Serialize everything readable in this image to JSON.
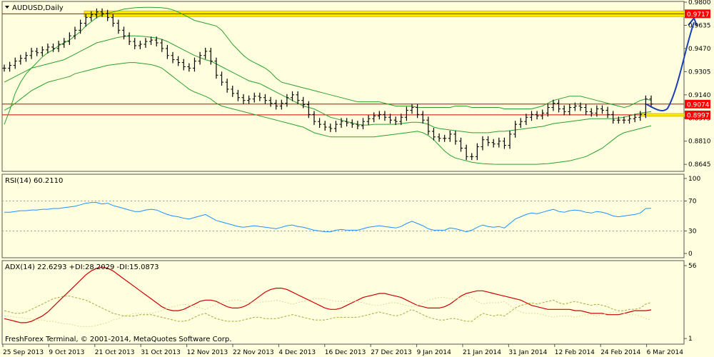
{
  "colors": {
    "background": "#ffffe0",
    "frame": "#555555",
    "candles": "#000000",
    "bollinger": "#2ca02c",
    "resistance": "#cc0000",
    "highlight_zone": "#ffee00",
    "highlight_edge": "#e0b400",
    "rsi_line": "#1e90ff",
    "adx_line": "#cc0000",
    "plus_di": "#a8a83a",
    "minus_di": "#d9d9a0",
    "arrow": "#1a3fb5",
    "label_bg": "#ff0000",
    "label_text": "#ffffff"
  },
  "chart_data": [
    {
      "type": "candlestick",
      "title": "AUDUSD,Daily",
      "ylim": [
        0.86,
        0.98
      ],
      "y_ticks": [
        "0.9800",
        "0.9635",
        "0.9470",
        "0.9305",
        "0.9140",
        "0.8975",
        "0.8810",
        "0.8645"
      ],
      "x_ticks": [
        "25 Sep 2013",
        "9 Oct 2013",
        "21 Oct 2013",
        "31 Oct 2013",
        "12 Nov 2013",
        "22 Nov 2013",
        "4 Dec 2013",
        "16 Dec 2013",
        "27 Dec 2013",
        "9 Jan 2014",
        "21 Jan 2014",
        "31 Jan 2014",
        "12 Feb 2014",
        "24 Feb 2014",
        "6 Mar 2014"
      ],
      "close": [
        0.933,
        0.935,
        0.938,
        0.94,
        0.942,
        0.945,
        0.944,
        0.946,
        0.948,
        0.947,
        0.95,
        0.952,
        0.956,
        0.96,
        0.965,
        0.969,
        0.971,
        0.973,
        0.972,
        0.969,
        0.965,
        0.96,
        0.956,
        0.952,
        0.949,
        0.95,
        0.952,
        0.953,
        0.951,
        0.947,
        0.942,
        0.939,
        0.937,
        0.934,
        0.933,
        0.938,
        0.942,
        0.945,
        0.938,
        0.928,
        0.923,
        0.918,
        0.915,
        0.912,
        0.91,
        0.911,
        0.913,
        0.912,
        0.91,
        0.908,
        0.906,
        0.908,
        0.912,
        0.914,
        0.91,
        0.907,
        0.9,
        0.895,
        0.893,
        0.891,
        0.89,
        0.893,
        0.895,
        0.894,
        0.893,
        0.892,
        0.895,
        0.897,
        0.899,
        0.9,
        0.898,
        0.896,
        0.895,
        0.898,
        0.903,
        0.905,
        0.9,
        0.896,
        0.888,
        0.884,
        0.883,
        0.883,
        0.886,
        0.881,
        0.876,
        0.87,
        0.87,
        0.877,
        0.882,
        0.88,
        0.879,
        0.881,
        0.878,
        0.886,
        0.893,
        0.895,
        0.898,
        0.9,
        0.899,
        0.901,
        0.905,
        0.908,
        0.904,
        0.902,
        0.905,
        0.906,
        0.905,
        0.902,
        0.901,
        0.904,
        0.903,
        0.9,
        0.896,
        0.896,
        0.896,
        0.897,
        0.898,
        0.9,
        0.911,
        0.9074
      ],
      "indicator": "Bollinger Bands",
      "bb_upper": [
        0.893,
        0.903,
        0.915,
        0.923,
        0.929,
        0.933,
        0.937,
        0.941,
        0.944,
        0.946,
        0.949,
        0.951,
        0.953,
        0.956,
        0.959,
        0.963,
        0.966,
        0.969,
        0.971,
        0.972,
        0.973,
        0.974,
        0.975,
        0.9756,
        0.976,
        0.9762,
        0.9763,
        0.9763,
        0.9762,
        0.976,
        0.9755,
        0.9745,
        0.973,
        0.971,
        0.969,
        0.967,
        0.966,
        0.965,
        0.964,
        0.963,
        0.96,
        0.955,
        0.95,
        0.946,
        0.942,
        0.939,
        0.937,
        0.935,
        0.933,
        0.93,
        0.926,
        0.923,
        0.922,
        0.921,
        0.92,
        0.919,
        0.918,
        0.917,
        0.916,
        0.915,
        0.914,
        0.913,
        0.912,
        0.911,
        0.91,
        0.909,
        0.909,
        0.909,
        0.909,
        0.909,
        0.908,
        0.907,
        0.906,
        0.906,
        0.906,
        0.906,
        0.905,
        0.905,
        0.905,
        0.905,
        0.905,
        0.905,
        0.905,
        0.906,
        0.906,
        0.906,
        0.905,
        0.905,
        0.905,
        0.905,
        0.905,
        0.905,
        0.904,
        0.904,
        0.904,
        0.904,
        0.904,
        0.904,
        0.905,
        0.906,
        0.908,
        0.91,
        0.911,
        0.912,
        0.913,
        0.913,
        0.913,
        0.912,
        0.911,
        0.91,
        0.909,
        0.908,
        0.907,
        0.906,
        0.905,
        0.906,
        0.908,
        0.91,
        0.911,
        0.91
      ],
      "bb_middle": [
        0.923,
        0.925,
        0.927,
        0.929,
        0.931,
        0.933,
        0.934,
        0.935,
        0.936,
        0.937,
        0.938,
        0.939,
        0.941,
        0.943,
        0.945,
        0.947,
        0.949,
        0.951,
        0.952,
        0.953,
        0.954,
        0.955,
        0.9555,
        0.956,
        0.956,
        0.9558,
        0.9555,
        0.955,
        0.9545,
        0.9535,
        0.952,
        0.95,
        0.948,
        0.946,
        0.944,
        0.942,
        0.9405,
        0.939,
        0.938,
        0.936,
        0.934,
        0.932,
        0.93,
        0.928,
        0.926,
        0.924,
        0.923,
        0.922,
        0.92,
        0.918,
        0.916,
        0.914,
        0.912,
        0.91,
        0.908,
        0.906,
        0.905,
        0.904,
        0.902,
        0.9,
        0.898,
        0.897,
        0.896,
        0.895,
        0.894,
        0.893,
        0.8925,
        0.8925,
        0.893,
        0.893,
        0.893,
        0.893,
        0.893,
        0.8935,
        0.894,
        0.8945,
        0.8945,
        0.894,
        0.893,
        0.891,
        0.89,
        0.8895,
        0.889,
        0.8885,
        0.888,
        0.8875,
        0.887,
        0.887,
        0.887,
        0.887,
        0.8875,
        0.888,
        0.888,
        0.8885,
        0.889,
        0.8895,
        0.89,
        0.8905,
        0.891,
        0.8915,
        0.8925,
        0.8935,
        0.894,
        0.8945,
        0.895,
        0.8955,
        0.896,
        0.8965,
        0.897,
        0.897,
        0.897,
        0.897,
        0.897,
        0.8975,
        0.898,
        0.899,
        0.9,
        0.901,
        0.9015,
        0.902
      ],
      "bb_lower": [
        0.903,
        0.905,
        0.908,
        0.911,
        0.914,
        0.917,
        0.919,
        0.921,
        0.923,
        0.924,
        0.925,
        0.926,
        0.927,
        0.929,
        0.93,
        0.931,
        0.932,
        0.933,
        0.934,
        0.935,
        0.9355,
        0.936,
        0.9365,
        0.937,
        0.937,
        0.9365,
        0.936,
        0.9355,
        0.9345,
        0.933,
        0.93,
        0.927,
        0.924,
        0.921,
        0.918,
        0.916,
        0.9145,
        0.913,
        0.911,
        0.908,
        0.906,
        0.905,
        0.904,
        0.903,
        0.902,
        0.901,
        0.9,
        0.899,
        0.898,
        0.897,
        0.896,
        0.895,
        0.894,
        0.893,
        0.892,
        0.891,
        0.889,
        0.887,
        0.886,
        0.885,
        0.884,
        0.884,
        0.884,
        0.884,
        0.884,
        0.884,
        0.884,
        0.884,
        0.884,
        0.8845,
        0.885,
        0.8855,
        0.886,
        0.8865,
        0.887,
        0.8875,
        0.888,
        0.887,
        0.885,
        0.882,
        0.878,
        0.874,
        0.871,
        0.869,
        0.868,
        0.867,
        0.866,
        0.8655,
        0.865,
        0.8648,
        0.8646,
        0.8645,
        0.8645,
        0.8645,
        0.8645,
        0.8645,
        0.8645,
        0.8645,
        0.8645,
        0.8648,
        0.865,
        0.8655,
        0.866,
        0.8665,
        0.867,
        0.868,
        0.869,
        0.87,
        0.872,
        0.874,
        0.876,
        0.879,
        0.882,
        0.885,
        0.887,
        0.888,
        0.889,
        0.89,
        0.891,
        0.892
      ],
      "horizontal_levels": [
        {
          "label": "0.9717",
          "value": 0.9717,
          "zone": [
            0.9697,
            0.9737
          ],
          "style": "highlight"
        },
        {
          "label": "0.9074",
          "value": 0.9074,
          "style": "line"
        },
        {
          "label": "0.8997",
          "value": 0.8997,
          "style": "line"
        }
      ],
      "annotation": {
        "type": "arrow",
        "from": 0.8997,
        "to": 0.9717,
        "label": ""
      }
    },
    {
      "type": "line",
      "title": "RSI(14) 60.2110",
      "ylim": [
        0,
        100
      ],
      "y_ticks": [
        "100",
        "70",
        "30",
        "0"
      ],
      "reference_levels": [
        70,
        30
      ],
      "values": [
        55,
        55,
        56,
        57,
        57,
        58,
        58,
        59,
        59,
        60,
        60,
        61,
        62,
        63,
        65,
        67,
        68,
        68,
        66,
        67,
        64,
        62,
        60,
        58,
        56,
        56,
        58,
        59,
        58,
        55,
        52,
        50,
        49,
        47,
        46,
        48,
        50,
        52,
        48,
        44,
        42,
        40,
        38,
        36,
        35,
        36,
        37,
        36,
        35,
        34,
        33,
        35,
        37,
        38,
        36,
        35,
        33,
        31,
        30,
        29,
        29,
        31,
        32,
        31,
        31,
        31,
        33,
        35,
        36,
        37,
        36,
        35,
        34,
        36,
        40,
        43,
        40,
        37,
        33,
        31,
        31,
        31,
        34,
        33,
        31,
        29,
        31,
        35,
        38,
        36,
        35,
        36,
        34,
        40,
        46,
        49,
        52,
        54,
        53,
        55,
        57,
        59,
        56,
        55,
        57,
        58,
        57,
        55,
        54,
        56,
        55,
        53,
        50,
        49,
        50,
        51,
        52,
        54,
        60,
        60.2
      ]
    },
    {
      "type": "line",
      "title": "ADX(14) 22.6293 +DI:28.2029 -DI:15.0873",
      "ylim": [
        0,
        56
      ],
      "y_ticks": [
        "56",
        "1"
      ],
      "series": [
        {
          "name": "ADX",
          "values": [
            16,
            15,
            14,
            13,
            13,
            14,
            16,
            18,
            21,
            25,
            29,
            33,
            37,
            41,
            45,
            49,
            52,
            54,
            55,
            54,
            52,
            49,
            46,
            43,
            40,
            37,
            34,
            31,
            28,
            25,
            23,
            22,
            22,
            23,
            25,
            27,
            29,
            30,
            30,
            29,
            27,
            25,
            24,
            24,
            25,
            27,
            30,
            33,
            36,
            38,
            39,
            39,
            38,
            36,
            34,
            32,
            30,
            28,
            26,
            24,
            23,
            23,
            24,
            26,
            28,
            30,
            32,
            33,
            34,
            35,
            35,
            34,
            33,
            32,
            30,
            28,
            26,
            25,
            24,
            24,
            24,
            25,
            27,
            30,
            33,
            35,
            36,
            37,
            37,
            36,
            35,
            34,
            33,
            32,
            31,
            30,
            28,
            26,
            25,
            24,
            23,
            23,
            23,
            23,
            23,
            22,
            22,
            21,
            20,
            20,
            20,
            19,
            19,
            19,
            20,
            21,
            22,
            22,
            22,
            22.6
          ]
        },
        {
          "name": "+DI",
          "values": [
            22,
            21,
            20,
            20,
            21,
            23,
            25,
            27,
            29,
            31,
            32,
            33,
            33,
            32,
            31,
            30,
            28,
            26,
            24,
            22,
            20,
            19,
            18,
            18,
            18,
            19,
            19,
            19,
            18,
            17,
            16,
            15,
            14,
            14,
            15,
            17,
            19,
            20,
            18,
            16,
            15,
            14,
            14,
            14,
            15,
            16,
            17,
            17,
            16,
            16,
            16,
            17,
            18,
            19,
            18,
            17,
            16,
            15,
            15,
            15,
            16,
            17,
            17,
            17,
            17,
            17,
            18,
            19,
            20,
            21,
            20,
            19,
            18,
            19,
            21,
            23,
            21,
            19,
            17,
            16,
            15,
            15,
            16,
            16,
            15,
            14,
            14,
            17,
            20,
            19,
            18,
            19,
            18,
            21,
            24,
            26,
            27,
            28,
            27,
            28,
            29,
            30,
            28,
            27,
            28,
            29,
            28,
            27,
            26,
            27,
            26,
            25,
            23,
            22,
            22,
            23,
            23,
            24,
            27,
            28.2
          ]
        },
        {
          "name": "-DI",
          "values": [
            18,
            18,
            17,
            17,
            16,
            16,
            15,
            15,
            14,
            14,
            13,
            12,
            12,
            11,
            10,
            10,
            10,
            11,
            12,
            13,
            15,
            16,
            18,
            19,
            20,
            20,
            20,
            20,
            21,
            22,
            24,
            25,
            26,
            27,
            26,
            25,
            24,
            23,
            25,
            27,
            28,
            29,
            30,
            30,
            29,
            28,
            28,
            28,
            29,
            29,
            30,
            29,
            28,
            27,
            28,
            29,
            30,
            31,
            31,
            31,
            30,
            29,
            29,
            29,
            29,
            29,
            28,
            27,
            26,
            26,
            27,
            28,
            28,
            27,
            26,
            25,
            26,
            28,
            30,
            31,
            32,
            32,
            31,
            31,
            32,
            33,
            32,
            29,
            27,
            28,
            28,
            28,
            29,
            26,
            23,
            21,
            20,
            20,
            20,
            19,
            18,
            17,
            18,
            18,
            18,
            17,
            18,
            19,
            19,
            18,
            19,
            20,
            21,
            21,
            20,
            19,
            19,
            18,
            16,
            15.1
          ]
        }
      ]
    }
  ],
  "footer_text": "FreshForex Terminal, © 2001-2014, MetaQuotes Software Corp."
}
